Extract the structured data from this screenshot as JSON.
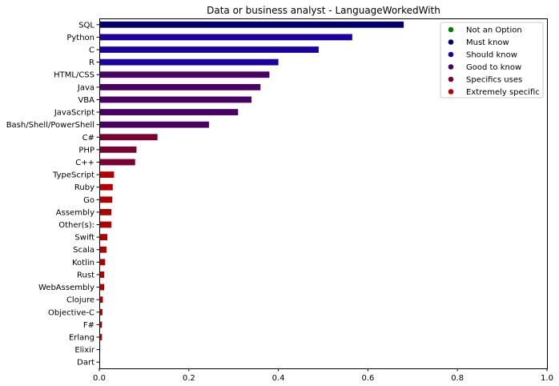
{
  "chart_data": {
    "type": "bar",
    "orientation": "horizontal",
    "title": "Data or business analyst - LanguageWorkedWith",
    "xlabel": "",
    "ylabel": "",
    "xlim": [
      0,
      1.0
    ],
    "xticks": [
      "0.0",
      "0.2",
      "0.4",
      "0.6",
      "0.8",
      "1.0"
    ],
    "grid": false,
    "legend_position": "top-right",
    "legend": [
      {
        "label": "Not an Option",
        "color": "#008000"
      },
      {
        "label": "Must know",
        "color": "#00006e"
      },
      {
        "label": "Should know",
        "color": "#1e00a0"
      },
      {
        "label": "Good to know",
        "color": "#4b0064"
      },
      {
        "label": "Specifics uses",
        "color": "#7d0032"
      },
      {
        "label": "Extremely specific",
        "color": "#b40000"
      }
    ],
    "bars": [
      {
        "label": "SQL",
        "value": 0.68,
        "group": "Must know"
      },
      {
        "label": "Python",
        "value": 0.565,
        "group": "Should know"
      },
      {
        "label": "C",
        "value": 0.49,
        "group": "Should know"
      },
      {
        "label": "R",
        "value": 0.4,
        "group": "Should know"
      },
      {
        "label": "HTML/CSS",
        "value": 0.38,
        "group": "Good to know"
      },
      {
        "label": "Java",
        "value": 0.36,
        "group": "Good to know"
      },
      {
        "label": "VBA",
        "value": 0.34,
        "group": "Good to know"
      },
      {
        "label": "JavaScript",
        "value": 0.31,
        "group": "Good to know"
      },
      {
        "label": "Bash/Shell/PowerShell",
        "value": 0.245,
        "group": "Good to know"
      },
      {
        "label": "C#",
        "value": 0.13,
        "group": "Specifics uses"
      },
      {
        "label": "PHP",
        "value": 0.083,
        "group": "Specifics uses"
      },
      {
        "label": "C++",
        "value": 0.08,
        "group": "Specifics uses"
      },
      {
        "label": "TypeScript",
        "value": 0.033,
        "group": "Extremely specific"
      },
      {
        "label": "Ruby",
        "value": 0.03,
        "group": "Extremely specific"
      },
      {
        "label": "Go",
        "value": 0.029,
        "group": "Extremely specific"
      },
      {
        "label": "Assembly",
        "value": 0.027,
        "group": "Extremely specific"
      },
      {
        "label": "Other(s):",
        "value": 0.027,
        "group": "Extremely specific"
      },
      {
        "label": "Swift",
        "value": 0.018,
        "group": "Extremely specific"
      },
      {
        "label": "Scala",
        "value": 0.016,
        "group": "Extremely specific"
      },
      {
        "label": "Kotlin",
        "value": 0.013,
        "group": "Extremely specific"
      },
      {
        "label": "Rust",
        "value": 0.011,
        "group": "Extremely specific"
      },
      {
        "label": "WebAssembly",
        "value": 0.011,
        "group": "Extremely specific"
      },
      {
        "label": "Clojure",
        "value": 0.008,
        "group": "Extremely specific"
      },
      {
        "label": "Objective-C",
        "value": 0.007,
        "group": "Extremely specific"
      },
      {
        "label": "F#",
        "value": 0.006,
        "group": "Extremely specific"
      },
      {
        "label": "Erlang",
        "value": 0.006,
        "group": "Extremely specific"
      },
      {
        "label": "Elixir",
        "value": 0.002,
        "group": "Extremely specific"
      },
      {
        "label": "Dart",
        "value": 0.001,
        "group": "Extremely specific"
      }
    ]
  }
}
